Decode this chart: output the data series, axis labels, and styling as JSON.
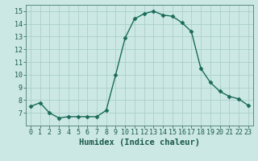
{
  "x": [
    0,
    1,
    2,
    3,
    4,
    5,
    6,
    7,
    8,
    9,
    10,
    11,
    12,
    13,
    14,
    15,
    16,
    17,
    18,
    19,
    20,
    21,
    22,
    23
  ],
  "y": [
    7.5,
    7.8,
    7.0,
    6.6,
    6.7,
    6.7,
    6.7,
    6.7,
    7.2,
    10.0,
    12.9,
    14.4,
    14.8,
    15.0,
    14.7,
    14.6,
    14.1,
    13.4,
    10.5,
    9.4,
    8.7,
    8.3,
    8.1,
    7.6
  ],
  "line_color": "#1a6b5a",
  "marker": "D",
  "marker_size": 2.5,
  "bg_color": "#cce8e4",
  "grid_color": "#aacfca",
  "xlabel": "Humidex (Indice chaleur)",
  "xlim": [
    -0.5,
    23.5
  ],
  "ylim": [
    6.0,
    15.5
  ],
  "yticks": [
    7,
    8,
    9,
    10,
    11,
    12,
    13,
    14,
    15
  ],
  "xticks": [
    0,
    1,
    2,
    3,
    4,
    5,
    6,
    7,
    8,
    9,
    10,
    11,
    12,
    13,
    14,
    15,
    16,
    17,
    18,
    19,
    20,
    21,
    22,
    23
  ],
  "xlabel_fontsize": 7.5,
  "tick_fontsize": 6.0
}
